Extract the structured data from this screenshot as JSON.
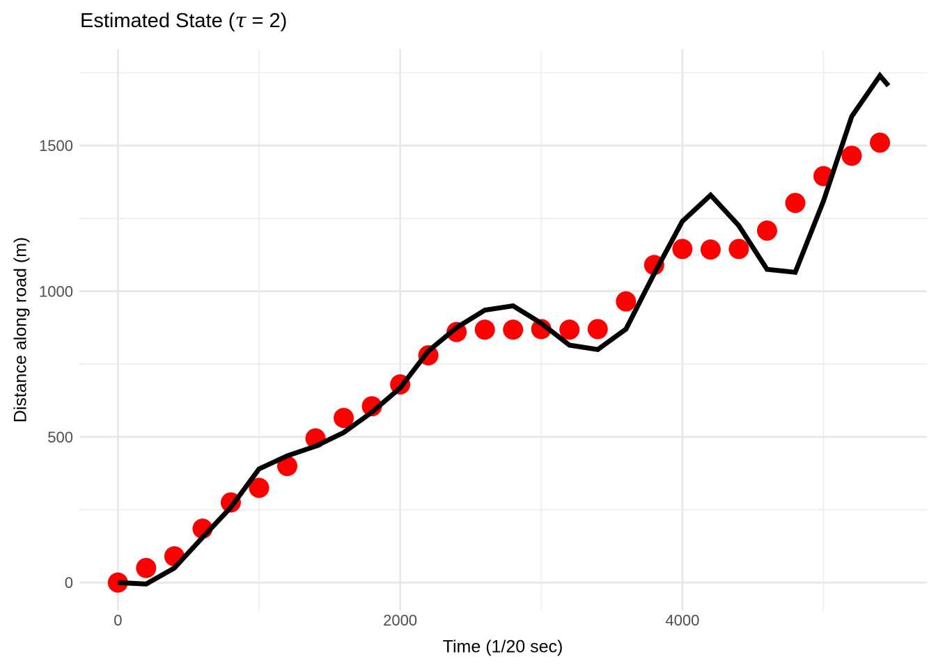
{
  "page": {
    "background_color": "#FFFFFF"
  },
  "title": {
    "prefix": "Estimated State (",
    "tau": "τ",
    "suffix": " = 2)",
    "full": "Estimated State (τ = 2)"
  },
  "style": {
    "grid_major_color": "#E8E8E8",
    "grid_minor_color": "#EBEBEB",
    "tick_label_color": "#4D4D4D",
    "axis_title_color": "#000000",
    "title_color": "#000000",
    "observation_color": "#FF0000",
    "line_color": "#000000"
  },
  "chart_data": {
    "type": "line",
    "title": "Estimated State (τ = 2)",
    "xlabel": "Time (1/20 sec)",
    "ylabel": "Distance along road (m)",
    "x_major_ticks": [
      0,
      2000,
      4000
    ],
    "x_minor_gridlines": [
      1000,
      3000,
      5000
    ],
    "y_major_ticks": [
      0,
      500,
      1000,
      1500
    ],
    "y_minor_gridlines": [
      250,
      750,
      1250,
      1750
    ],
    "xlim": [
      -273,
      5733
    ],
    "ylim": [
      -95,
      1830
    ],
    "grid": "major and minor gridlines, no axis lines (ggplot theme_minimal style)",
    "legend": "none",
    "series": [
      {
        "name": "observations-points",
        "type": "scatter",
        "color": "#FF0000",
        "radius": 14.5,
        "x": [
          0,
          200,
          400,
          600,
          800,
          1000,
          1200,
          1400,
          1600,
          1800,
          2000,
          2200,
          2400,
          2600,
          2800,
          3000,
          3200,
          3400,
          3600,
          3800,
          4000,
          4200,
          4400,
          4600,
          4800,
          5000,
          5200,
          5400
        ],
        "y": [
          0,
          50,
          90,
          185,
          275,
          325,
          400,
          495,
          565,
          605,
          680,
          780,
          860,
          868,
          868,
          870,
          868,
          870,
          965,
          1090,
          1145,
          1143,
          1145,
          1208,
          1303,
          1395,
          1465,
          1510
        ]
      },
      {
        "name": "estimated-state-line",
        "type": "line",
        "color": "#000000",
        "stroke_width": 7,
        "x": [
          0,
          200,
          400,
          600,
          800,
          1000,
          1200,
          1400,
          1600,
          1800,
          2000,
          2200,
          2400,
          2600,
          2800,
          3000,
          3200,
          3400,
          3600,
          3800,
          4000,
          4200,
          4400,
          4600,
          4800,
          5000,
          5200,
          5400,
          5460
        ],
        "y": [
          0,
          -5,
          50,
          155,
          258,
          390,
          435,
          468,
          515,
          585,
          668,
          795,
          875,
          935,
          950,
          890,
          815,
          800,
          870,
          1060,
          1240,
          1330,
          1225,
          1075,
          1065,
          1310,
          1600,
          1740,
          1705
        ]
      }
    ]
  }
}
